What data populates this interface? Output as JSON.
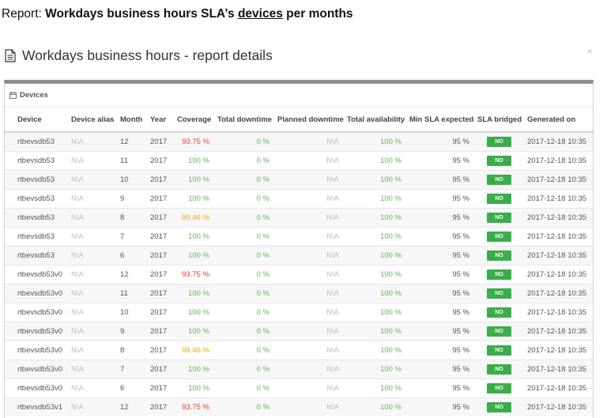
{
  "header": {
    "prefix": "Report:",
    "title_part1": "Workdays business hours SLA’s",
    "title_link": "devices",
    "title_part2": "per months"
  },
  "modal": {
    "title": "Workdays business hours - report details",
    "close_label": "×"
  },
  "panel": {
    "heading": "Devices"
  },
  "table": {
    "columns": [
      "Device",
      "Device alias",
      "Month",
      "Year",
      "Coverage",
      "Total downtime",
      "Planned downtime",
      "Total availability",
      "Min SLA expected",
      "SLA bridged",
      "Generated on"
    ],
    "rows": [
      {
        "device": "rtbevsdb53",
        "alias": "N\\A",
        "month": "12",
        "year": "2017",
        "coverage": "93.75 %",
        "cov_status": "red",
        "downtime": "0 %",
        "planned": "N\\A",
        "availability": "100 %",
        "min_sla": "95 %",
        "bridged": "NO",
        "generated": "2017-12-18 10:35"
      },
      {
        "device": "rtbevsdb53",
        "alias": "N\\A",
        "month": "11",
        "year": "2017",
        "coverage": "100 %",
        "cov_status": "green",
        "downtime": "0 %",
        "planned": "N\\A",
        "availability": "100 %",
        "min_sla": "95 %",
        "bridged": "NO",
        "generated": "2017-12-18 10:35"
      },
      {
        "device": "rtbevsdb53",
        "alias": "N\\A",
        "month": "10",
        "year": "2017",
        "coverage": "100 %",
        "cov_status": "green",
        "downtime": "0 %",
        "planned": "N\\A",
        "availability": "100 %",
        "min_sla": "95 %",
        "bridged": "NO",
        "generated": "2017-12-18 10:35"
      },
      {
        "device": "rtbevsdb53",
        "alias": "N\\A",
        "month": "9",
        "year": "2017",
        "coverage": "100 %",
        "cov_status": "green",
        "downtime": "0 %",
        "planned": "N\\A",
        "availability": "100 %",
        "min_sla": "95 %",
        "bridged": "NO",
        "generated": "2017-12-18 10:35"
      },
      {
        "device": "rtbevsdb53",
        "alias": "N\\A",
        "month": "8",
        "year": "2017",
        "coverage": "99.46 %",
        "cov_status": "orange",
        "downtime": "0 %",
        "planned": "N\\A",
        "availability": "100 %",
        "min_sla": "95 %",
        "bridged": "NO",
        "generated": "2017-12-18 10:35"
      },
      {
        "device": "rtbevsdb53",
        "alias": "N\\A",
        "month": "7",
        "year": "2017",
        "coverage": "100 %",
        "cov_status": "green",
        "downtime": "0 %",
        "planned": "N\\A",
        "availability": "100 %",
        "min_sla": "95 %",
        "bridged": "NO",
        "generated": "2017-12-18 10:35"
      },
      {
        "device": "rtbevsdb53",
        "alias": "N\\A",
        "month": "6",
        "year": "2017",
        "coverage": "100 %",
        "cov_status": "green",
        "downtime": "0 %",
        "planned": "N\\A",
        "availability": "100 %",
        "min_sla": "95 %",
        "bridged": "NO",
        "generated": "2017-12-18 10:35"
      },
      {
        "device": "rtbevsdb53v0",
        "alias": "N\\A",
        "month": "12",
        "year": "2017",
        "coverage": "93.75 %",
        "cov_status": "red",
        "downtime": "0 %",
        "planned": "N\\A",
        "availability": "100 %",
        "min_sla": "95 %",
        "bridged": "NO",
        "generated": "2017-12-18 10:35"
      },
      {
        "device": "rtbevsdb53v0",
        "alias": "N\\A",
        "month": "11",
        "year": "2017",
        "coverage": "100 %",
        "cov_status": "green",
        "downtime": "0 %",
        "planned": "N\\A",
        "availability": "100 %",
        "min_sla": "95 %",
        "bridged": "NO",
        "generated": "2017-12-18 10:35"
      },
      {
        "device": "rtbevsdb53v0",
        "alias": "N\\A",
        "month": "10",
        "year": "2017",
        "coverage": "100 %",
        "cov_status": "green",
        "downtime": "0 %",
        "planned": "N\\A",
        "availability": "100 %",
        "min_sla": "95 %",
        "bridged": "NO",
        "generated": "2017-12-18 10:35"
      },
      {
        "device": "rtbevsdb53v0",
        "alias": "N\\A",
        "month": "9",
        "year": "2017",
        "coverage": "100 %",
        "cov_status": "green",
        "downtime": "0 %",
        "planned": "N\\A",
        "availability": "100 %",
        "min_sla": "95 %",
        "bridged": "NO",
        "generated": "2017-12-18 10:35"
      },
      {
        "device": "rtbevsdb53v0",
        "alias": "N\\A",
        "month": "8",
        "year": "2017",
        "coverage": "99.46 %",
        "cov_status": "orange",
        "downtime": "0 %",
        "planned": "N\\A",
        "availability": "100 %",
        "min_sla": "95 %",
        "bridged": "NO",
        "generated": "2017-12-18 10:35"
      },
      {
        "device": "rtbevsdb53v0",
        "alias": "N\\A",
        "month": "7",
        "year": "2017",
        "coverage": "100 %",
        "cov_status": "green",
        "downtime": "0 %",
        "planned": "N\\A",
        "availability": "100 %",
        "min_sla": "95 %",
        "bridged": "NO",
        "generated": "2017-12-18 10:35"
      },
      {
        "device": "rtbevsdb53v0",
        "alias": "N\\A",
        "month": "6",
        "year": "2017",
        "coverage": "100 %",
        "cov_status": "green",
        "downtime": "0 %",
        "planned": "N\\A",
        "availability": "100 %",
        "min_sla": "95 %",
        "bridged": "NO",
        "generated": "2017-12-18 10:35"
      },
      {
        "device": "rtbevsdb53v1",
        "alias": "N\\A",
        "month": "12",
        "year": "2017",
        "coverage": "93.75 %",
        "cov_status": "red",
        "downtime": "0 %",
        "planned": "N\\A",
        "availability": "100 %",
        "min_sla": "95 %",
        "bridged": "NO",
        "generated": "2017-12-18 10:35"
      }
    ]
  },
  "colors": {
    "coverage_red": "#e53935",
    "coverage_green": "#5cb85c",
    "coverage_orange": "#f0a30a",
    "badge_green": "#3aad4a"
  },
  "icons": {
    "modal_title": "document-icon",
    "panel_heading": "calendar-icon"
  }
}
